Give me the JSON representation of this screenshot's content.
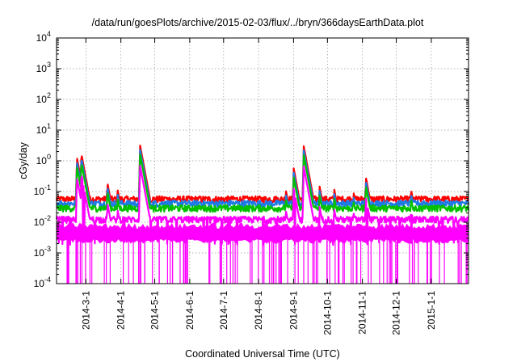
{
  "chart_data": {
    "type": "line",
    "title": "/data/run/goesPlots/archive/2015-02-03/flux/../bryn/366daysEarthData.plot",
    "xlabel": "Coordinated Universal Time (UTC)",
    "ylabel": "cGy/day",
    "yscale": "log",
    "ylim": [
      0.0001,
      10000
    ],
    "xlim": [
      "2014-02-03",
      "2015-02-03"
    ],
    "grid": true,
    "legend": "none",
    "y_ticks": [
      {
        "value": 0.0001,
        "mantissa": "10",
        "exp": "-4"
      },
      {
        "value": 0.001,
        "mantissa": "10",
        "exp": "-3"
      },
      {
        "value": 0.01,
        "mantissa": "10",
        "exp": "-2"
      },
      {
        "value": 0.1,
        "mantissa": "10",
        "exp": "-1"
      },
      {
        "value": 1,
        "mantissa": "10",
        "exp": "0"
      },
      {
        "value": 10,
        "mantissa": "10",
        "exp": "1"
      },
      {
        "value": 100,
        "mantissa": "10",
        "exp": "2"
      },
      {
        "value": 1000,
        "mantissa": "10",
        "exp": "3"
      },
      {
        "value": 10000,
        "mantissa": "10",
        "exp": "4"
      }
    ],
    "x_ticks": [
      {
        "date": "2014-03-01",
        "label": "2014-3-1"
      },
      {
        "date": "2014-04-01",
        "label": "2014-4-1"
      },
      {
        "date": "2014-05-01",
        "label": "2014-5-1"
      },
      {
        "date": "2014-06-01",
        "label": "2014-6-1"
      },
      {
        "date": "2014-07-01",
        "label": "2014-7-1"
      },
      {
        "date": "2014-08-01",
        "label": "2014-8-1"
      },
      {
        "date": "2014-09-01",
        "label": "2014-9-1"
      },
      {
        "date": "2014-10-01",
        "label": "2014-10-1"
      },
      {
        "date": "2014-11-01",
        "label": "2014-11-1"
      },
      {
        "date": "2014-12-01",
        "label": "2014-12-1"
      },
      {
        "date": "2015-01-01",
        "label": "2015-1-1"
      }
    ],
    "events": [
      {
        "date": "2014-02-21",
        "peak": 1.3
      },
      {
        "date": "2014-02-25",
        "peak": 1.7
      },
      {
        "date": "2014-02-27",
        "peak": 0.6
      },
      {
        "date": "2014-03-20",
        "peak": 0.2
      },
      {
        "date": "2014-03-29",
        "peak": 0.12
      },
      {
        "date": "2014-04-18",
        "peak": 3.2
      },
      {
        "date": "2014-05-10",
        "peak": 0.08
      },
      {
        "date": "2014-06-10",
        "peak": 0.07
      },
      {
        "date": "2014-07-08",
        "peak": 0.07
      },
      {
        "date": "2014-08-25",
        "peak": 0.12
      },
      {
        "date": "2014-09-01",
        "peak": 0.6
      },
      {
        "date": "2014-09-10",
        "peak": 3.0
      },
      {
        "date": "2014-09-24",
        "peak": 0.15
      },
      {
        "date": "2014-10-07",
        "peak": 0.12
      },
      {
        "date": "2014-10-24",
        "peak": 0.1
      },
      {
        "date": "2014-11-04",
        "peak": 0.3
      },
      {
        "date": "2014-12-14",
        "peak": 0.12
      },
      {
        "date": "2014-12-25",
        "peak": 0.08
      }
    ],
    "series": [
      {
        "color": "#ff0000",
        "baseline": 0.055
      },
      {
        "color": "#1e7be6",
        "baseline": 0.04
      },
      {
        "color": "#00c000",
        "baseline": 0.028
      },
      {
        "color": "#ff00ff",
        "baseline": 0.012,
        "floor": 0.002
      }
    ]
  }
}
